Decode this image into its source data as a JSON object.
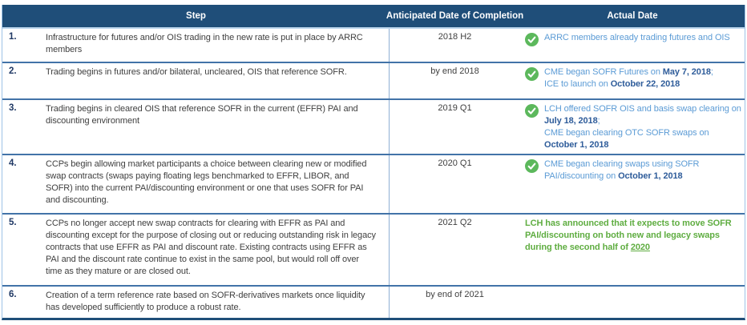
{
  "table": {
    "title": "ARRC Paced Transition Plan status table",
    "headers": {
      "step": "Step",
      "anticipated": "Anticipated Date of Completion",
      "actual": "Actual Date"
    },
    "icons": {
      "check": "green-checkmark-circle"
    },
    "colors": {
      "header_bg": "#1F4E79",
      "header_text": "#FFFFFF",
      "row_divider": "#4273A8",
      "outer_border": "#9DC3E6",
      "bottom_border": "#1F4E79",
      "step_number": "#1F3864",
      "body_text": "#404040",
      "actual_blue": "#5B9BD5",
      "actual_blue_bold": "#2E5C9A",
      "actual_green": "#5FAD41",
      "check_green": "#5CB85C"
    },
    "rows": [
      {
        "num": "1.",
        "step": "Infrastructure for futures and/or OIS trading in the new rate is put in place by ARRC members",
        "anticipated": "2018 H2",
        "check": true,
        "actual_style": "blue",
        "actual": [
          {
            "t": "ARRC members already trading futures and OIS"
          }
        ]
      },
      {
        "num": "2.",
        "step": "Trading begins in futures and/or bilateral, uncleared, OIS that reference SOFR.",
        "anticipated": "by end 2018",
        "check": true,
        "actual_style": "blue",
        "actual": [
          {
            "t": "CME began SOFR Futures on "
          },
          {
            "t": "May 7, 2018",
            "b": true
          },
          {
            "t": ";"
          },
          {
            "br": true
          },
          {
            "t": "ICE to launch on "
          },
          {
            "t": "October 22, 2018",
            "b": true
          }
        ]
      },
      {
        "num": "3.",
        "step": "Trading begins in cleared OIS that reference SOFR in the current (EFFR) PAI and discounting environment",
        "anticipated": "2019 Q1",
        "check": true,
        "actual_style": "blue",
        "actual": [
          {
            "t": "LCH offered SOFR OIS and basis swap clearing on "
          },
          {
            "t": "July 18, 2018",
            "b": true
          },
          {
            "t": ";"
          },
          {
            "br": true
          },
          {
            "t": "CME began clearing OTC SOFR swaps on "
          },
          {
            "t": "October 1, 2018",
            "b": true
          }
        ]
      },
      {
        "num": "4.",
        "step": "CCPs begin allowing market participants a choice between clearing new or modified swap contracts (swaps paying floating legs benchmarked to EFFR, LIBOR, and SOFR) into the current PAI/discounting environment or one that uses SOFR for PAI and discounting.",
        "anticipated": "2020 Q1",
        "check": true,
        "actual_style": "blue",
        "actual": [
          {
            "t": "CME began clearing swaps using SOFR PAI/discounting on "
          },
          {
            "t": "October 1, 2018",
            "b": true
          }
        ]
      },
      {
        "num": "5.",
        "step": "CCPs no longer accept new swap contracts for clearing with EFFR as PAI and discounting except for the purpose of closing out or reducing outstanding risk in legacy contracts that use EFFR as PAI and discount rate. Existing contracts using EFFR as PAI and the discount rate continue to exist in the same pool, but would roll off over time as they mature or are closed out.",
        "anticipated": "2021 Q2",
        "check": false,
        "actual_style": "green",
        "actual": [
          {
            "t": "LCH has announced that it expects to move SOFR PAI/discounting on both new and legacy swaps during the second half of "
          },
          {
            "t": "2020",
            "u": true
          }
        ]
      },
      {
        "num": "6.",
        "step": "Creation of a term reference rate based on SOFR-derivatives markets once liquidity has developed sufficiently to produce a robust rate.",
        "anticipated": "by end of 2021",
        "check": false,
        "actual_style": "blue",
        "actual": []
      }
    ]
  }
}
